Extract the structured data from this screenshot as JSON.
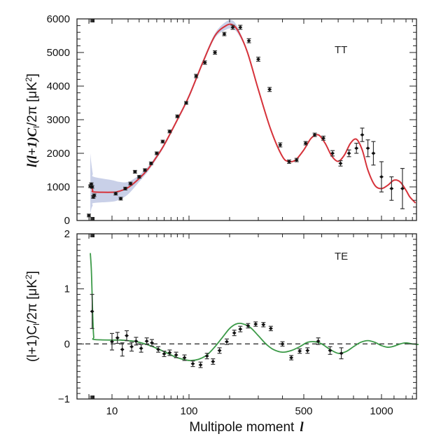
{
  "chart_data": [
    {
      "type": "line",
      "panel": "top",
      "label": "TT",
      "ylabel": "l(l+1)C_l/2π [μK²]",
      "xlabel": "Multipole moment l",
      "xscale": "piecewise (log below 10, compressed above)",
      "xlim": [
        2,
        1400
      ],
      "ylim": [
        0,
        6000
      ],
      "yticks": [
        0,
        1000,
        2000,
        3000,
        4000,
        5000,
        6000
      ],
      "xticks_labeled": [
        10,
        100,
        500,
        1000
      ],
      "colors": {
        "model": "#d6323a",
        "band": "#c3cbe6",
        "points": "#111111"
      },
      "model_curve": {
        "name": "best-fit model",
        "x": [
          3,
          4,
          6,
          8,
          10,
          14,
          20,
          30,
          40,
          50,
          60,
          80,
          100,
          130,
          160,
          190,
          210,
          230,
          260,
          300,
          350,
          400,
          430,
          460,
          500,
          540,
          580,
          620,
          660,
          700,
          740,
          780,
          820,
          860,
          900,
          950,
          1000,
          1050,
          1100,
          1150,
          1200,
          1260,
          1350
        ],
        "y": [
          1100,
          1000,
          900,
          850,
          840,
          870,
          980,
          1250,
          1550,
          1900,
          2250,
          3000,
          3700,
          4700,
          5500,
          5800,
          5820,
          5600,
          5000,
          3900,
          2700,
          1900,
          1760,
          1800,
          2100,
          2450,
          2550,
          2300,
          1920,
          1760,
          1950,
          2300,
          2420,
          2100,
          1500,
          1050,
          950,
          1050,
          1200,
          1150,
          900,
          700,
          520
        ]
      },
      "band_upper": [
        2000,
        1700,
        1400,
        1300,
        1200,
        1150,
        1150,
        1350,
        1620,
        1960,
        2300,
        3050,
        3760,
        4760,
        5570,
        5920,
        5950,
        5680,
        5040,
        3930,
        2720,
        1920,
        1780,
        1810,
        2110,
        2460,
        2560,
        2310,
        1930,
        1770,
        1960,
        2310,
        2430,
        2110,
        1510,
        1060,
        960,
        1060,
        1210,
        1160,
        910,
        710,
        530
      ],
      "band_lower": [
        200,
        350,
        450,
        520,
        560,
        620,
        780,
        1150,
        1480,
        1840,
        2200,
        2950,
        3640,
        4640,
        5430,
        5680,
        5700,
        5520,
        4960,
        3870,
        2680,
        1880,
        1740,
        1790,
        2090,
        2440,
        2540,
        2290,
        1910,
        1750,
        1940,
        2290,
        2410,
        2090,
        1490,
        1040,
        940,
        1040,
        1190,
        1140,
        890,
        690,
        510
      ],
      "points": [
        {
          "l": 2,
          "v": 150,
          "err": 40
        },
        {
          "l": 3,
          "v": 1020,
          "err": 40
        },
        {
          "l": 4,
          "v": 1080,
          "err": 40
        },
        {
          "l": 5,
          "v": 1000,
          "err": 40
        },
        {
          "l": 7,
          "v": 700,
          "err": 40
        },
        {
          "l": 9,
          "v": 750,
          "err": 40
        },
        {
          "l": 12,
          "v": 800,
          "err": 40
        },
        {
          "l": 15,
          "v": 650,
          "err": 40
        },
        {
          "l": 18,
          "v": 950,
          "err": 40
        },
        {
          "l": 22,
          "v": 1100,
          "err": 40
        },
        {
          "l": 26,
          "v": 1450,
          "err": 40
        },
        {
          "l": 30,
          "v": 1300,
          "err": 40
        },
        {
          "l": 36,
          "v": 1500,
          "err": 40
        },
        {
          "l": 43,
          "v": 1700,
          "err": 40
        },
        {
          "l": 50,
          "v": 2000,
          "err": 40
        },
        {
          "l": 58,
          "v": 2350,
          "err": 40
        },
        {
          "l": 68,
          "v": 2650,
          "err": 40
        },
        {
          "l": 80,
          "v": 3100,
          "err": 40
        },
        {
          "l": 95,
          "v": 3500,
          "err": 40
        },
        {
          "l": 115,
          "v": 4300,
          "err": 50
        },
        {
          "l": 135,
          "v": 4700,
          "err": 50
        },
        {
          "l": 160,
          "v": 5000,
          "err": 50
        },
        {
          "l": 185,
          "v": 5550,
          "err": 50
        },
        {
          "l": 210,
          "v": 5750,
          "err": 60
        },
        {
          "l": 235,
          "v": 5750,
          "err": 60
        },
        {
          "l": 265,
          "v": 5350,
          "err": 60
        },
        {
          "l": 300,
          "v": 4800,
          "err": 60
        },
        {
          "l": 345,
          "v": 3900,
          "err": 60
        },
        {
          "l": 390,
          "v": 2250,
          "err": 60
        },
        {
          "l": 430,
          "v": 1750,
          "err": 50
        },
        {
          "l": 465,
          "v": 1800,
          "err": 50
        },
        {
          "l": 510,
          "v": 2300,
          "err": 50
        },
        {
          "l": 560,
          "v": 2550,
          "err": 50
        },
        {
          "l": 610,
          "v": 2450,
          "err": 60
        },
        {
          "l": 665,
          "v": 2000,
          "err": 80
        },
        {
          "l": 715,
          "v": 1700,
          "err": 80
        },
        {
          "l": 770,
          "v": 2000,
          "err": 100
        },
        {
          "l": 820,
          "v": 2150,
          "err": 150
        },
        {
          "l": 860,
          "v": 2550,
          "err": 200
        },
        {
          "l": 900,
          "v": 2150,
          "err": 250
        },
        {
          "l": 940,
          "v": 2000,
          "err": 350
        },
        {
          "l": 1000,
          "v": 1300,
          "err": 450
        },
        {
          "l": 1080,
          "v": 950,
          "err": 350
        },
        {
          "l": 1170,
          "v": 950,
          "err": 600
        }
      ]
    },
    {
      "type": "line",
      "panel": "bottom",
      "label": "TE",
      "ylabel": "(l+1)C_l/2π [μK²]",
      "xlabel": "Multipole moment l",
      "xlim": [
        2,
        1400
      ],
      "ylim": [
        -1,
        2
      ],
      "yticks": [
        -1,
        0,
        1,
        2
      ],
      "xticks_labeled": [
        10,
        100,
        500,
        1000
      ],
      "colors": {
        "model": "#3c9a48",
        "zero_line": "#333333",
        "points": "#111111"
      },
      "model_curve": {
        "name": "best-fit model",
        "x": [
          3,
          4,
          5,
          6,
          7,
          8,
          9,
          10,
          12,
          15,
          20,
          25,
          30,
          40,
          50,
          60,
          70,
          80,
          100,
          120,
          140,
          160,
          180,
          200,
          220,
          240,
          270,
          300,
          330,
          360,
          400,
          440,
          480,
          520,
          560,
          600,
          650,
          700,
          750,
          800,
          850,
          900,
          950,
          1000,
          1050,
          1100,
          1150,
          1200,
          1300,
          1400
        ],
        "y": [
          1.65,
          1.35,
          0.9,
          0.5,
          0.25,
          0.12,
          0.08,
          0.07,
          0.07,
          0.07,
          0.06,
          0.05,
          0.03,
          -0.02,
          -0.08,
          -0.14,
          -0.2,
          -0.25,
          -0.3,
          -0.28,
          -0.2,
          -0.05,
          0.12,
          0.28,
          0.36,
          0.37,
          0.3,
          0.15,
          0.0,
          -0.1,
          -0.15,
          -0.12,
          -0.05,
          0.03,
          0.04,
          0.0,
          -0.1,
          -0.17,
          -0.14,
          -0.05,
          0.03,
          0.06,
          0.03,
          -0.03,
          -0.06,
          -0.04,
          0.0,
          0.02,
          0.0,
          -0.01
        ]
      },
      "points": [
        {
          "l": 5,
          "v": 0.59,
          "err": 0.31
        },
        {
          "l": 10,
          "v": 0.04,
          "err": 0.15
        },
        {
          "l": 13,
          "v": 0.11,
          "err": 0.1
        },
        {
          "l": 16,
          "v": -0.1,
          "err": 0.12
        },
        {
          "l": 19,
          "v": 0.15,
          "err": 0.09
        },
        {
          "l": 23,
          "v": -0.05,
          "err": 0.08
        },
        {
          "l": 27,
          "v": 0.05,
          "err": 0.07
        },
        {
          "l": 32,
          "v": -0.08,
          "err": 0.07
        },
        {
          "l": 38,
          "v": 0.05,
          "err": 0.06
        },
        {
          "l": 44,
          "v": 0.02,
          "err": 0.06
        },
        {
          "l": 52,
          "v": -0.1,
          "err": 0.05
        },
        {
          "l": 60,
          "v": -0.18,
          "err": 0.05
        },
        {
          "l": 68,
          "v": -0.16,
          "err": 0.05
        },
        {
          "l": 78,
          "v": -0.2,
          "err": 0.05
        },
        {
          "l": 92,
          "v": -0.25,
          "err": 0.05
        },
        {
          "l": 108,
          "v": -0.36,
          "err": 0.05
        },
        {
          "l": 125,
          "v": -0.38,
          "err": 0.05
        },
        {
          "l": 140,
          "v": -0.22,
          "err": 0.05
        },
        {
          "l": 155,
          "v": -0.32,
          "err": 0.05
        },
        {
          "l": 172,
          "v": -0.12,
          "err": 0.05
        },
        {
          "l": 192,
          "v": 0.04,
          "err": 0.05
        },
        {
          "l": 215,
          "v": 0.2,
          "err": 0.05
        },
        {
          "l": 235,
          "v": 0.27,
          "err": 0.05
        },
        {
          "l": 262,
          "v": 0.33,
          "err": 0.04
        },
        {
          "l": 290,
          "v": 0.36,
          "err": 0.04
        },
        {
          "l": 320,
          "v": 0.35,
          "err": 0.04
        },
        {
          "l": 350,
          "v": 0.28,
          "err": 0.04
        },
        {
          "l": 400,
          "v": 0.0,
          "err": 0.04
        },
        {
          "l": 440,
          "v": -0.25,
          "err": 0.04
        },
        {
          "l": 480,
          "v": -0.13,
          "err": 0.04
        },
        {
          "l": 520,
          "v": -0.12,
          "err": 0.05
        },
        {
          "l": 580,
          "v": 0.05,
          "err": 0.06
        },
        {
          "l": 650,
          "v": -0.12,
          "err": 0.07
        },
        {
          "l": 720,
          "v": -0.17,
          "err": 0.1
        }
      ]
    }
  ],
  "shared": {
    "xtick_labels": [
      "10",
      "100",
      "500",
      "1000"
    ],
    "xlabel_text": "Multipole moment",
    "xlabel_symbol": "l",
    "top_ylabel": "l(l+1)C",
    "top_ylabel_sub": "l",
    "top_ylabel_rest": "/2π [μK",
    "top_ylabel_sup": "2",
    "top_ylabel_end": "]",
    "bottom_ylabel": "(l+1)C",
    "bottom_ylabel_sub": "l",
    "bottom_ylabel_rest": "/2π [μK",
    "bottom_ylabel_sup": "2",
    "bottom_ylabel_end": "]",
    "top_ytick_labels": [
      "0",
      "1000",
      "2000",
      "3000",
      "4000",
      "5000",
      "6000"
    ],
    "bottom_ytick_labels": [
      "−1",
      "0",
      "1",
      "2"
    ],
    "panel_top_label": "TT",
    "panel_bottom_label": "TE"
  }
}
